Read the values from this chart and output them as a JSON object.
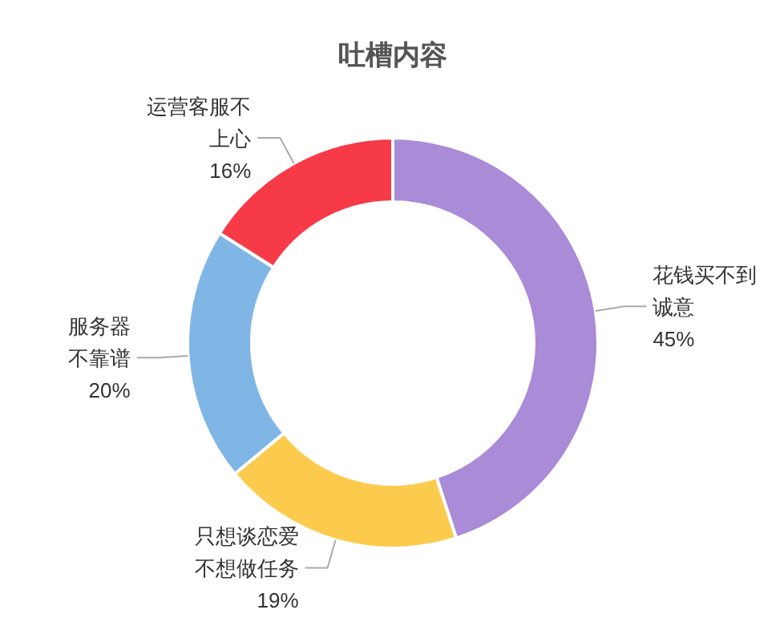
{
  "chart_data": {
    "type": "donut",
    "title": "吐槽内容",
    "categories": [
      "花钱买不到诚意",
      "只想谈恋爱不想做任务",
      "服务器不靠谱",
      "运营客服不上心"
    ],
    "values": [
      45,
      19,
      20,
      16
    ],
    "value_labels": [
      "45%",
      "19%",
      "20%",
      "16%"
    ],
    "colors": [
      "#a98bd8",
      "#fccb4e",
      "#7fb6e6",
      "#f73a48"
    ]
  }
}
